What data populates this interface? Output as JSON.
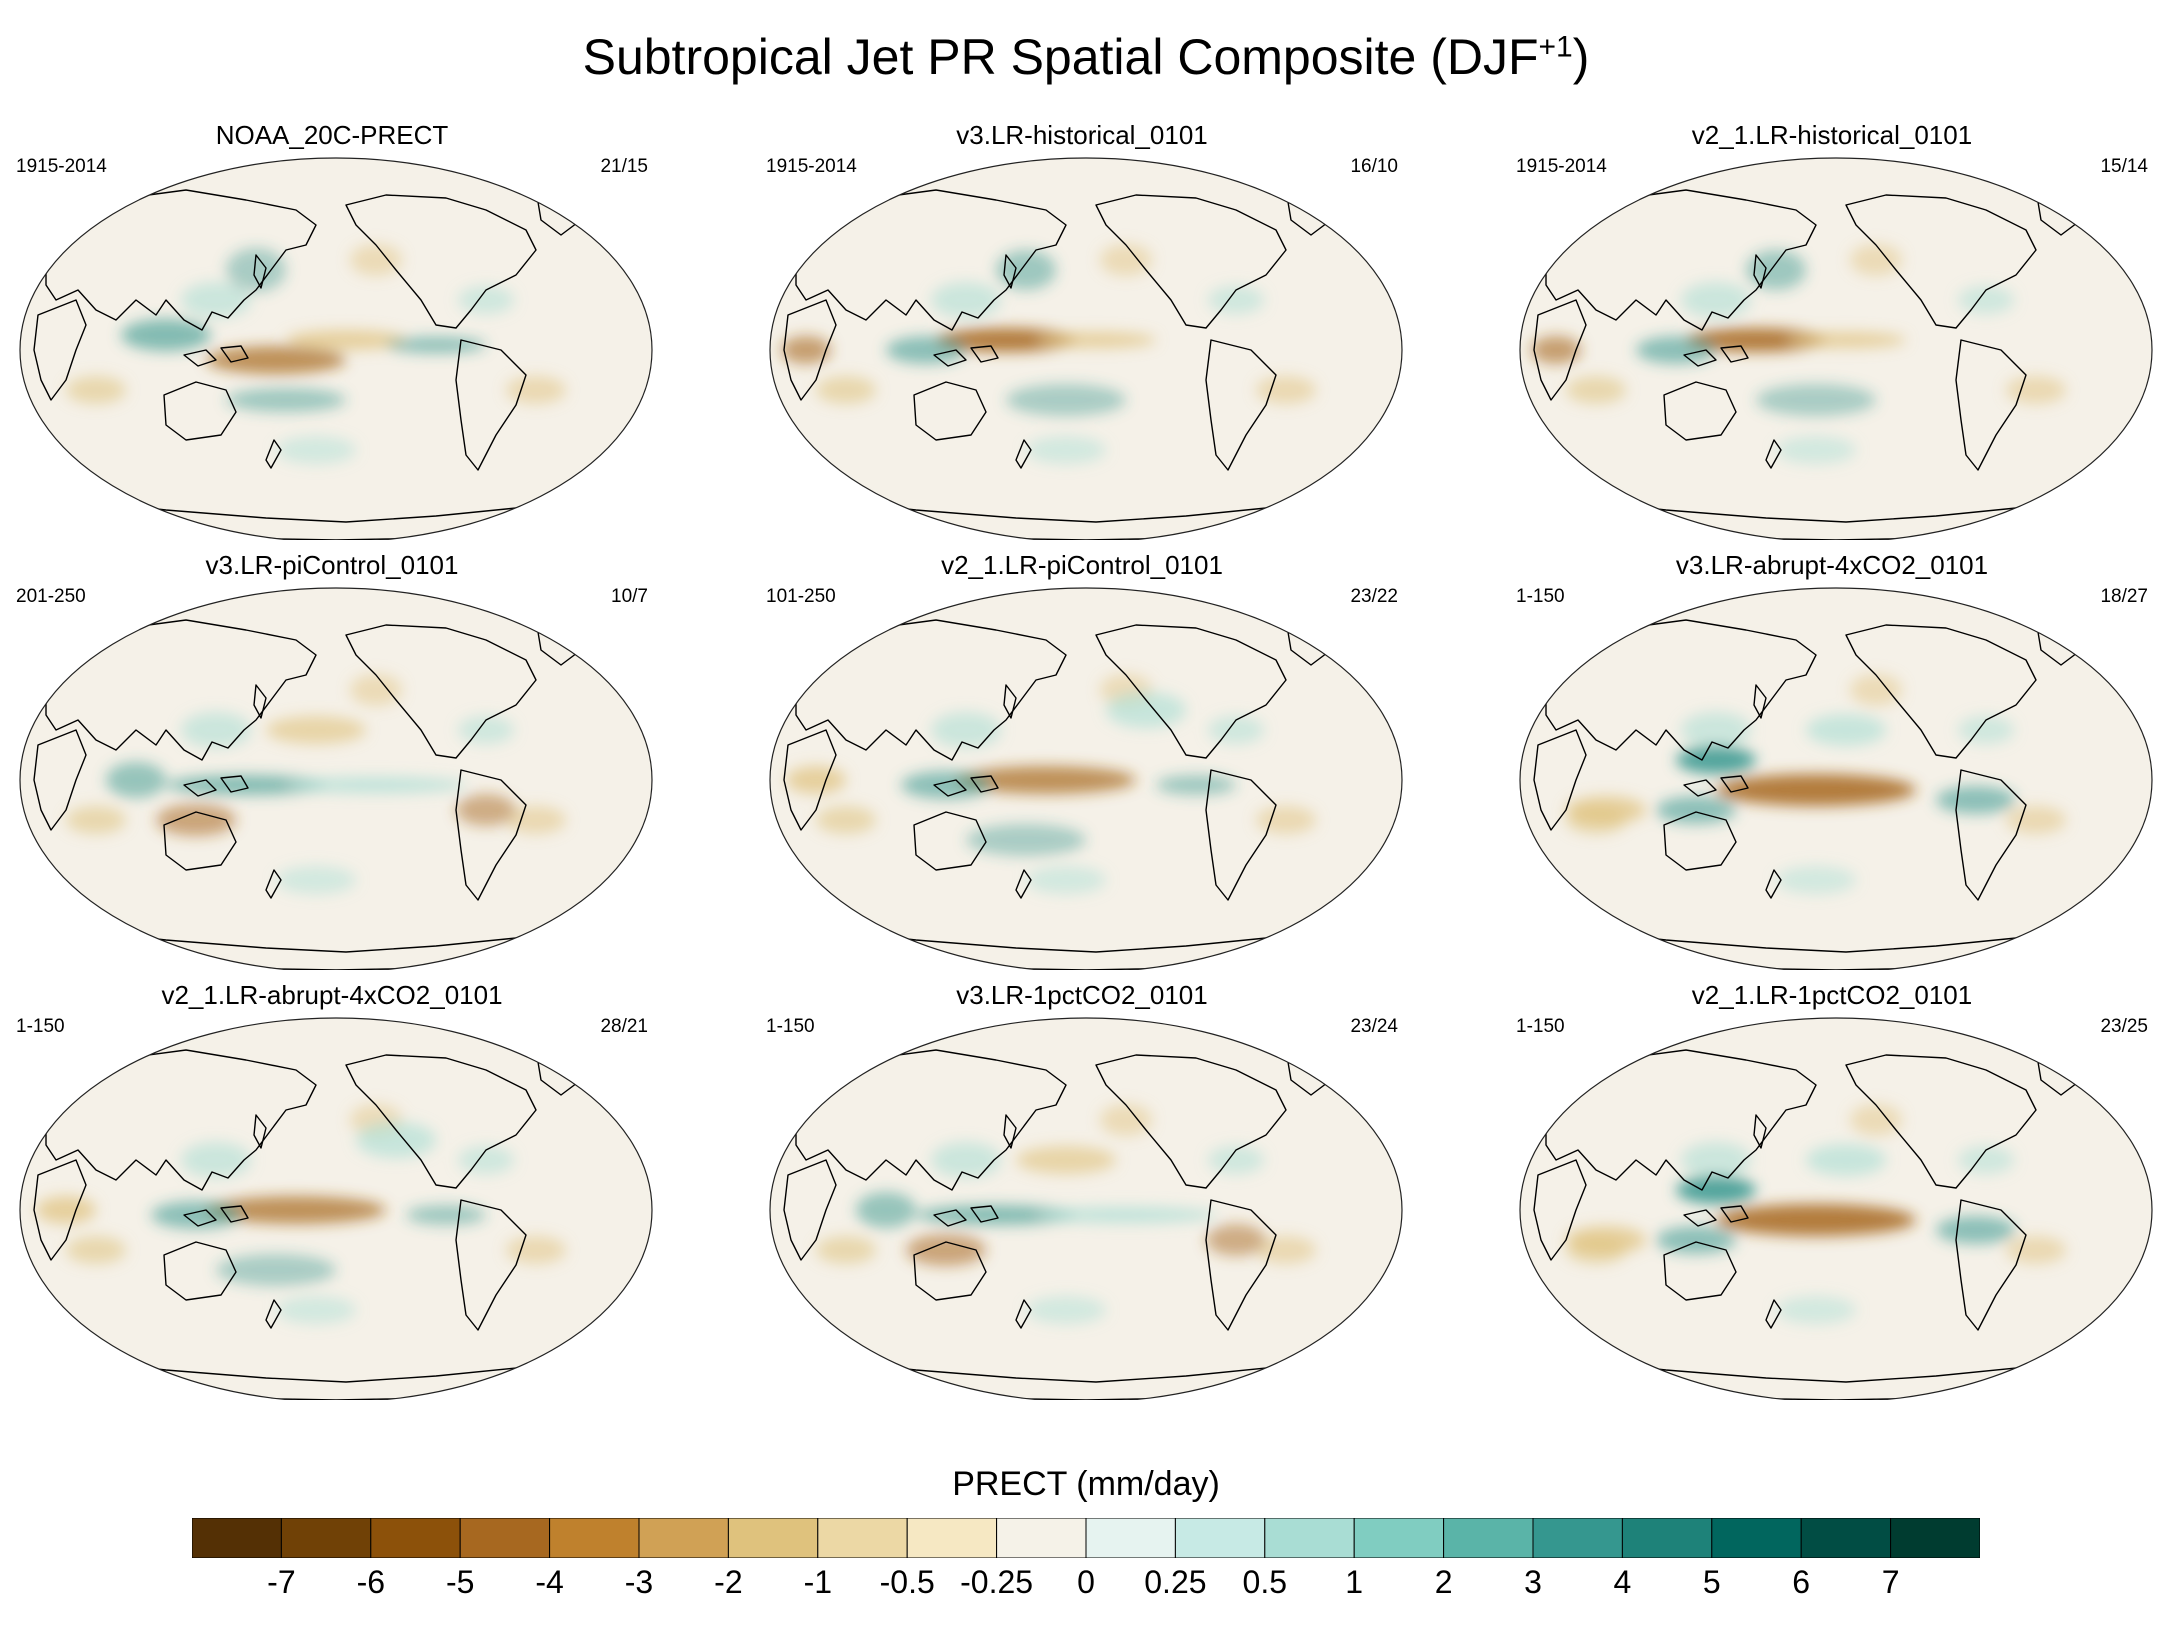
{
  "title": "Subtropical Jet PR Spatial Composite (DJF",
  "title_sup": "+1",
  "title_close": ")",
  "panels": [
    {
      "name": "NOAA_20C-PRECT",
      "years": "1915-2014",
      "counts": "21/15",
      "pattern": "obs"
    },
    {
      "name": "v3.LR-historical_0101",
      "years": "1915-2014",
      "counts": "16/10",
      "pattern": "dry-west"
    },
    {
      "name": "v2_1.LR-historical_0101",
      "years": "1915-2014",
      "counts": "15/14",
      "pattern": "dry-west"
    },
    {
      "name": "v3.LR-piControl_0101",
      "years": "201-250",
      "counts": "10/7",
      "pattern": "wet-band"
    },
    {
      "name": "v2_1.LR-piControl_0101",
      "years": "101-250",
      "counts": "23/22",
      "pattern": "dry-central"
    },
    {
      "name": "v3.LR-abrupt-4xCO2_0101",
      "years": "1-150",
      "counts": "18/27",
      "pattern": "strong"
    },
    {
      "name": "v2_1.LR-abrupt-4xCO2_0101",
      "years": "1-150",
      "counts": "28/21",
      "pattern": "dry-central"
    },
    {
      "name": "v3.LR-1pctCO2_0101",
      "years": "1-150",
      "counts": "23/24",
      "pattern": "wet-band"
    },
    {
      "name": "v2_1.LR-1pctCO2_0101",
      "years": "1-150",
      "counts": "23/25",
      "pattern": "strong"
    }
  ],
  "colorbar": {
    "label": "PRECT (mm/day)",
    "ticks": [
      "-7",
      "-6",
      "-5",
      "-4",
      "-3",
      "-2",
      "-1",
      "-0.5",
      "-0.25",
      "0",
      "0.25",
      "0.5",
      "1",
      "2",
      "3",
      "4",
      "5",
      "6",
      "7"
    ],
    "colors": [
      "#543005",
      "#704106",
      "#8c510a",
      "#a76820",
      "#bf812d",
      "#d0a155",
      "#dfc27d",
      "#ecd8a5",
      "#f6e8c3",
      "#f5f2e8",
      "#e6f3f0",
      "#c7eae5",
      "#a9ddd4",
      "#80cdc1",
      "#5ab4a8",
      "#35978f",
      "#1e8279",
      "#01665e",
      "#014d44",
      "#003c30"
    ]
  },
  "colors": {
    "land_bg": "#f5f1e8",
    "coast": "#000000",
    "wet": "#35978f",
    "wet_light": "#a9ddd4",
    "dry": "#a76820",
    "dry_light": "#dfc27d"
  }
}
